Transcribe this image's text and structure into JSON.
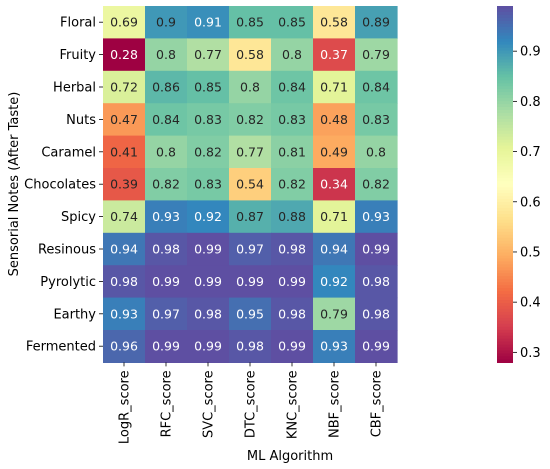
{
  "chart_data": {
    "type": "heatmap",
    "title": "",
    "xlabel": "ML Algorithm",
    "ylabel": "Sensorial Notes (After Taste)",
    "x_categories": [
      "LogR_score",
      "RFC_score",
      "SVC_score",
      "DTC_score",
      "KNC_score",
      "NBF_score",
      "CBF_score"
    ],
    "y_categories": [
      "Floral",
      "Fruity",
      "Herbal",
      "Nuts",
      "Caramel",
      "Chocolates",
      "Spicy",
      "Resinous",
      "Pyrolytic",
      "Earthy",
      "Fermented"
    ],
    "values": [
      [
        0.69,
        0.9,
        0.91,
        0.85,
        0.85,
        0.58,
        0.89
      ],
      [
        0.28,
        0.8,
        0.77,
        0.58,
        0.8,
        0.37,
        0.79
      ],
      [
        0.72,
        0.86,
        0.85,
        0.8,
        0.84,
        0.71,
        0.84
      ],
      [
        0.47,
        0.84,
        0.83,
        0.82,
        0.83,
        0.48,
        0.83
      ],
      [
        0.41,
        0.8,
        0.82,
        0.77,
        0.81,
        0.49,
        0.8
      ],
      [
        0.39,
        0.82,
        0.83,
        0.54,
        0.82,
        0.34,
        0.82
      ],
      [
        0.74,
        0.93,
        0.92,
        0.87,
        0.88,
        0.71,
        0.93
      ],
      [
        0.94,
        0.98,
        0.99,
        0.97,
        0.98,
        0.94,
        0.99
      ],
      [
        0.98,
        0.99,
        0.99,
        0.99,
        0.99,
        0.92,
        0.98
      ],
      [
        0.93,
        0.97,
        0.98,
        0.95,
        0.98,
        0.79,
        0.98
      ],
      [
        0.96,
        0.99,
        0.99,
        0.98,
        0.99,
        0.93,
        0.99
      ]
    ],
    "colormap": "Spectral",
    "vmin": 0.28,
    "vmax": 0.99,
    "colorbar_ticks": [
      0.3,
      0.4,
      0.5,
      0.6,
      0.7,
      0.8,
      0.9
    ],
    "annotations": true
  }
}
